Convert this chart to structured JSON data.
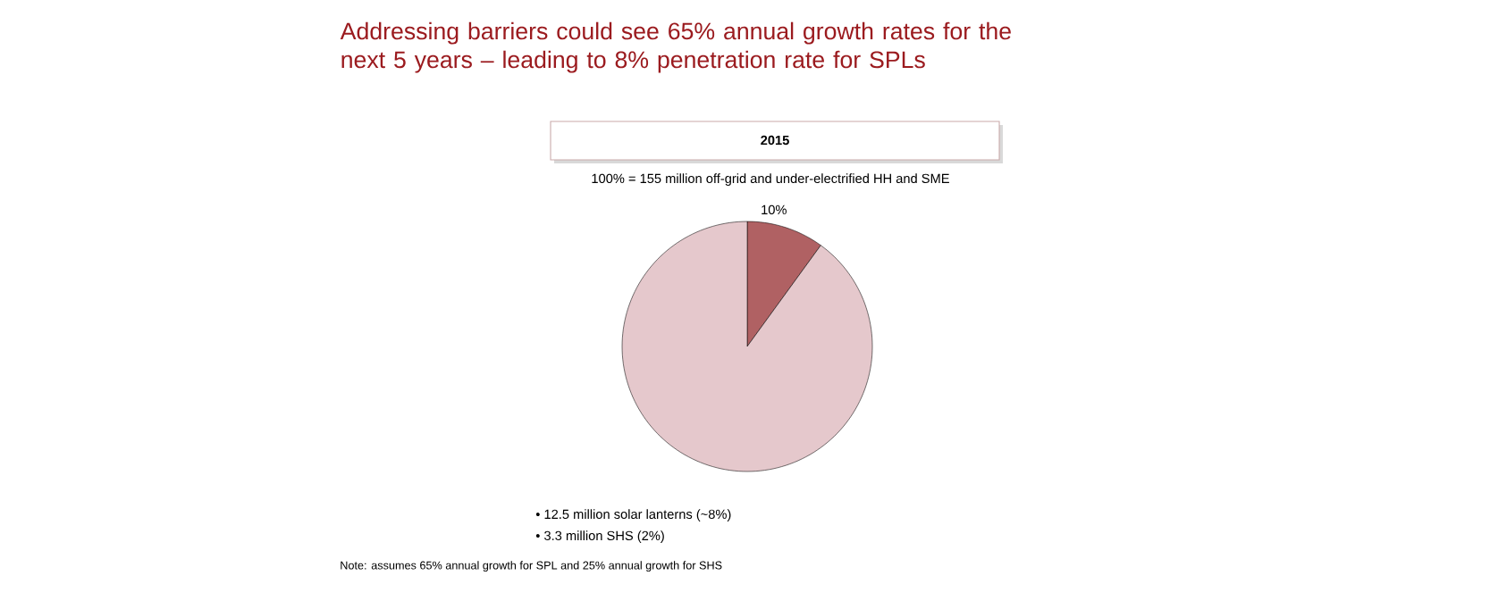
{
  "chart_data": {
    "type": "pie",
    "title": "Addressing barriers could see 65% annual growth rates for the next 5 years – leading  to 8% penetration rate for SPLs",
    "subtitle": "2015",
    "categories": [
      null,
      null
    ],
    "values": [
      10,
      90
    ],
    "colors": [
      "#b06163",
      "#e5c8cc"
    ],
    "value_labels": [
      "10%",
      null
    ],
    "annotations": [
      "100% = 155 million off-grid and under-electrified HH and SME",
      "• 12.5 million solar lanterns (~8%)",
      "• 3.3 million SHS (2%)",
      "Note: assumes 65% annual growth for SPL and 25% annual growth for SHS"
    ]
  }
}
